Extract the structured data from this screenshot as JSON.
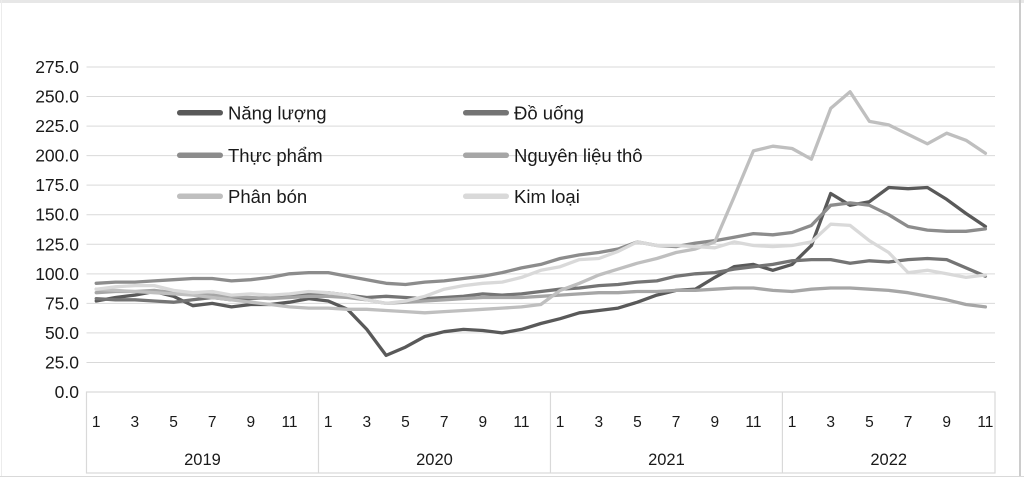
{
  "chart": {
    "title": "",
    "y_axis": {
      "min": 0,
      "max": 275,
      "step": 25,
      "tick_decimals": 1
    },
    "x_axis": {
      "month_ticks": [
        "1",
        "3",
        "5",
        "7",
        "9",
        "11"
      ],
      "years": [
        {
          "label": "2019",
          "months": 12
        },
        {
          "label": "2020",
          "months": 12
        },
        {
          "label": "2021",
          "months": 12
        },
        {
          "label": "2022",
          "months": 11
        }
      ]
    },
    "legend": {
      "columns": [
        [
          "Năng lượng",
          "Thực phẩm",
          "Phân bón"
        ],
        [
          "Đồ uống",
          "Nguyên liệu thô",
          "Kim loại"
        ]
      ]
    },
    "colors": {
      "grid": "#d9d9d9",
      "axis_box_border": "#d9d9d9",
      "text": "#1a1a1a"
    }
  },
  "chart_data": {
    "type": "line",
    "title": "",
    "xlabel": "",
    "ylabel": "",
    "ylim": [
      0,
      275
    ],
    "y_tick_step": 25,
    "grid": "horizontal",
    "legend_position": "inside-top-left, two columns",
    "x": [
      "2019-01",
      "2019-02",
      "2019-03",
      "2019-04",
      "2019-05",
      "2019-06",
      "2019-07",
      "2019-08",
      "2019-09",
      "2019-10",
      "2019-11",
      "2019-12",
      "2020-01",
      "2020-02",
      "2020-03",
      "2020-04",
      "2020-05",
      "2020-06",
      "2020-07",
      "2020-08",
      "2020-09",
      "2020-10",
      "2020-11",
      "2020-12",
      "2021-01",
      "2021-02",
      "2021-03",
      "2021-04",
      "2021-05",
      "2021-06",
      "2021-07",
      "2021-08",
      "2021-09",
      "2021-10",
      "2021-11",
      "2021-12",
      "2022-01",
      "2022-02",
      "2022-03",
      "2022-04",
      "2022-05",
      "2022-06",
      "2022-07",
      "2022-08",
      "2022-09",
      "2022-10",
      "2022-11"
    ],
    "series": [
      {
        "name": "Năng lượng",
        "color": "#595959",
        "values": [
          77,
          80,
          82,
          85,
          81,
          73,
          75,
          72,
          74,
          74,
          76,
          79,
          77,
          70,
          53,
          31,
          38,
          47,
          51,
          53,
          52,
          50,
          53,
          58,
          62,
          67,
          69,
          71,
          76,
          82,
          86,
          87,
          97,
          106,
          108,
          103,
          108,
          124,
          168,
          158,
          161,
          173,
          172,
          173,
          163,
          151,
          140
        ]
      },
      {
        "name": "Đồ uống",
        "color": "#747474",
        "values": [
          79,
          78,
          78,
          77,
          76,
          78,
          80,
          78,
          79,
          80,
          81,
          83,
          84,
          82,
          80,
          81,
          80,
          79,
          80,
          81,
          83,
          82,
          83,
          85,
          87,
          88,
          90,
          91,
          93,
          94,
          98,
          100,
          101,
          104,
          106,
          108,
          111,
          112,
          112,
          109,
          111,
          110,
          112,
          113,
          112,
          105,
          98
        ]
      },
      {
        "name": "Thực phẩm",
        "color": "#8c8c8c",
        "values": [
          92,
          93,
          93,
          94,
          95,
          96,
          96,
          94,
          95,
          97,
          100,
          101,
          101,
          98,
          95,
          92,
          91,
          93,
          94,
          96,
          98,
          101,
          105,
          108,
          113,
          116,
          118,
          121,
          127,
          124,
          123,
          126,
          128,
          131,
          134,
          133,
          135,
          141,
          158,
          160,
          158,
          150,
          140,
          137,
          136,
          136,
          138
        ]
      },
      {
        "name": "Nguyên liệu thô",
        "color": "#a6a6a6",
        "values": [
          84,
          85,
          85,
          86,
          84,
          83,
          82,
          81,
          80,
          79,
          80,
          81,
          81,
          80,
          78,
          75,
          76,
          77,
          78,
          79,
          80,
          80,
          80,
          81,
          82,
          83,
          84,
          84,
          85,
          85,
          86,
          86,
          87,
          88,
          88,
          86,
          85,
          87,
          88,
          88,
          87,
          86,
          84,
          81,
          78,
          74,
          72
        ]
      },
      {
        "name": "Phân bón",
        "color": "#bfbfbf",
        "values": [
          87,
          86,
          85,
          84,
          83,
          82,
          80,
          78,
          76,
          74,
          72,
          71,
          71,
          70,
          70,
          69,
          68,
          67,
          68,
          69,
          70,
          71,
          72,
          74,
          86,
          92,
          99,
          104,
          109,
          113,
          118,
          121,
          127,
          165,
          204,
          208,
          206,
          197,
          240,
          254,
          229,
          226,
          218,
          210,
          219,
          213,
          202
        ]
      },
      {
        "name": "Kim loại",
        "color": "#d9d9d9",
        "values": [
          87,
          89,
          90,
          90,
          86,
          84,
          85,
          82,
          83,
          82,
          83,
          85,
          84,
          82,
          78,
          75,
          77,
          81,
          87,
          90,
          92,
          93,
          97,
          103,
          106,
          112,
          113,
          119,
          127,
          124,
          124,
          123,
          122,
          127,
          124,
          123,
          124,
          127,
          142,
          141,
          128,
          118,
          101,
          103,
          100,
          97,
          99
        ]
      }
    ]
  }
}
